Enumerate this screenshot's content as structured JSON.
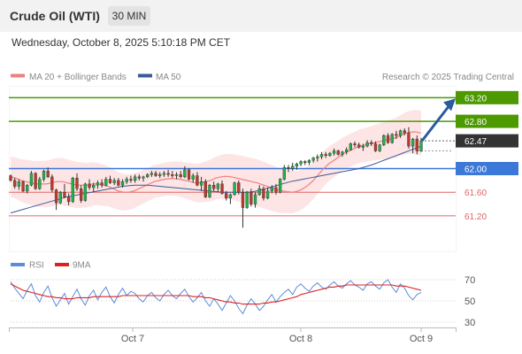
{
  "header": {
    "title": "Crude Oil (WTI)",
    "timeframe": "30 MIN"
  },
  "timestamp": "Wednesday, October 8, 2025 5:10:18 PM CET",
  "legend": {
    "ma20": "MA 20 + Bollinger Bands",
    "ma50": "MA 50",
    "credit": "Research © 2025 Trading Central",
    "rsi": "RSI",
    "ma9": "9MA"
  },
  "colors": {
    "candle_up": "#22b14c",
    "candle_down": "#c0392b",
    "ma20": "#f08080",
    "band": "#fde0e0",
    "ma50": "#3d5a99",
    "resistance": "#4c9a00",
    "support_blue": "#3c78d8",
    "support_red": "#e06666",
    "current": "#333333",
    "arrow": "#2a5b9c",
    "rsi": "#5b8dd9",
    "rsi_ma": "#e02020"
  },
  "chart_data": [
    {
      "type": "candlestick",
      "instrument": "Crude Oil (WTI)",
      "interval": "30 MIN",
      "xlabel": "",
      "ylabel": "",
      "x_ticks": [
        "Oct 7",
        "Oct 8",
        "Oct 9"
      ],
      "ylim": [
        60.6,
        63.4
      ],
      "current_price": 62.47,
      "levels": [
        {
          "value": 63.2,
          "label": "63.20",
          "kind": "resistance"
        },
        {
          "value": 62.8,
          "label": "62.80",
          "kind": "resistance"
        },
        {
          "value": 62.47,
          "label": "62.47",
          "kind": "current"
        },
        {
          "value": 62.0,
          "label": "62.00",
          "kind": "pivot"
        },
        {
          "value": 61.6,
          "label": "61.60",
          "kind": "support"
        },
        {
          "value": 61.2,
          "label": "61.20",
          "kind": "support"
        }
      ],
      "forecast_target": 63.2,
      "series": [
        {
          "name": "MA 20",
          "values": [
            61.86,
            61.84,
            61.8,
            61.78,
            61.76,
            61.74,
            61.74,
            61.74,
            61.76,
            61.78,
            61.78,
            61.76,
            61.74,
            61.72,
            61.72,
            61.72,
            61.74,
            61.74,
            61.72,
            61.7,
            61.66,
            61.62,
            61.6,
            61.6,
            61.62,
            61.66,
            61.7,
            61.74,
            61.78,
            61.8,
            61.82,
            61.83,
            61.83,
            61.82,
            61.8,
            61.78,
            61.76,
            61.76,
            61.78,
            61.8,
            61.84,
            61.86,
            61.87,
            61.86,
            61.84,
            61.82,
            61.8,
            61.78,
            61.76,
            61.73,
            61.7,
            61.67,
            61.64,
            61.62,
            61.61,
            61.6,
            61.62,
            61.66,
            61.72,
            61.8,
            61.9,
            62.0,
            62.08,
            62.14,
            62.2,
            62.26,
            62.3,
            62.34,
            62.38,
            62.4,
            62.42,
            62.44,
            62.46,
            62.48,
            62.5,
            62.52,
            62.56,
            62.6,
            62.62,
            62.62,
            62.6
          ]
        },
        {
          "name": "MA 50",
          "values": [
            61.25,
            61.28,
            61.31,
            61.34,
            61.37,
            61.4,
            61.43,
            61.46,
            61.49,
            61.52,
            61.54,
            61.56,
            61.58,
            61.6,
            61.62,
            61.64,
            61.66,
            61.68,
            61.7,
            61.71,
            61.72,
            61.72,
            61.72,
            61.71,
            61.7,
            61.69,
            61.68,
            61.67,
            61.66,
            61.65,
            61.64,
            61.63,
            61.62,
            61.61,
            61.6,
            61.6,
            61.6,
            61.6,
            61.6,
            61.61,
            61.63,
            61.66,
            61.69,
            61.72,
            61.75,
            61.78,
            61.8,
            61.82,
            61.84,
            61.86,
            61.88,
            61.9,
            61.92,
            61.94,
            61.96,
            61.98,
            62.0,
            62.03,
            62.06,
            62.1,
            62.14,
            62.18,
            62.22,
            62.26,
            62.3,
            62.34,
            62.38
          ]
        }
      ],
      "candles": [
        [
          61.88,
          61.9,
          61.78,
          61.8
        ],
        [
          61.8,
          61.84,
          61.66,
          61.7
        ],
        [
          61.7,
          61.82,
          61.64,
          61.78
        ],
        [
          61.78,
          61.8,
          61.6,
          61.62
        ],
        [
          61.62,
          61.74,
          61.58,
          61.72
        ],
        [
          61.72,
          61.96,
          61.7,
          61.92
        ],
        [
          61.92,
          61.94,
          61.64,
          61.66
        ],
        [
          61.66,
          61.86,
          61.64,
          61.82
        ],
        [
          61.82,
          61.98,
          61.78,
          61.96
        ],
        [
          61.96,
          62.02,
          61.84,
          61.86
        ],
        [
          61.86,
          61.9,
          61.6,
          61.64
        ],
        [
          61.64,
          61.66,
          61.3,
          61.42
        ],
        [
          61.42,
          61.62,
          61.4,
          61.6
        ],
        [
          61.6,
          61.74,
          61.5,
          61.52
        ],
        [
          61.52,
          61.58,
          61.38,
          61.44
        ],
        [
          61.44,
          61.86,
          61.42,
          61.84
        ],
        [
          61.84,
          61.92,
          61.62,
          61.66
        ],
        [
          61.66,
          61.72,
          61.42,
          61.46
        ],
        [
          61.46,
          61.76,
          61.44,
          61.74
        ],
        [
          61.74,
          61.82,
          61.64,
          61.68
        ],
        [
          61.68,
          61.76,
          61.6,
          61.72
        ],
        [
          61.72,
          61.8,
          61.66,
          61.76
        ],
        [
          61.76,
          61.82,
          61.68,
          61.72
        ],
        [
          61.72,
          61.86,
          61.7,
          61.82
        ],
        [
          61.82,
          61.88,
          61.74,
          61.76
        ],
        [
          61.76,
          61.84,
          61.72,
          61.8
        ],
        [
          61.8,
          61.84,
          61.7,
          61.72
        ],
        [
          61.72,
          61.82,
          61.68,
          61.78
        ],
        [
          61.78,
          61.86,
          61.74,
          61.82
        ],
        [
          61.82,
          61.88,
          61.76,
          61.8
        ],
        [
          61.8,
          61.9,
          61.76,
          61.86
        ],
        [
          61.86,
          61.9,
          61.8,
          61.84
        ],
        [
          61.84,
          61.88,
          61.78,
          61.86
        ],
        [
          61.86,
          61.92,
          61.84,
          61.9
        ],
        [
          61.9,
          61.96,
          61.86,
          61.92
        ],
        [
          61.92,
          61.96,
          61.86,
          61.88
        ],
        [
          61.88,
          61.94,
          61.84,
          61.9
        ],
        [
          61.9,
          61.96,
          61.86,
          61.92
        ],
        [
          61.92,
          61.98,
          61.86,
          61.9
        ],
        [
          61.9,
          61.96,
          61.84,
          61.88
        ],
        [
          61.88,
          61.94,
          61.82,
          61.9
        ],
        [
          61.9,
          61.96,
          61.84,
          61.86
        ],
        [
          61.86,
          62.04,
          61.84,
          61.98
        ],
        [
          61.98,
          62.0,
          61.8,
          61.82
        ],
        [
          61.82,
          61.92,
          61.76,
          61.88
        ],
        [
          61.88,
          61.94,
          61.7,
          61.72
        ],
        [
          61.72,
          61.86,
          61.62,
          61.78
        ],
        [
          61.78,
          61.82,
          61.5,
          61.52
        ],
        [
          61.52,
          61.74,
          61.5,
          61.72
        ],
        [
          61.72,
          61.78,
          61.62,
          61.66
        ],
        [
          61.66,
          61.76,
          61.6,
          61.74
        ],
        [
          61.74,
          61.8,
          61.56,
          61.58
        ],
        [
          61.58,
          61.62,
          61.46,
          61.5
        ],
        [
          61.5,
          61.58,
          61.4,
          61.56
        ],
        [
          61.56,
          61.78,
          61.54,
          61.76
        ],
        [
          61.76,
          61.8,
          61.56,
          61.6
        ],
        [
          61.6,
          61.66,
          61.0,
          61.34
        ],
        [
          61.34,
          61.62,
          61.32,
          61.6
        ],
        [
          61.6,
          61.66,
          61.36,
          61.4
        ],
        [
          61.4,
          61.6,
          61.34,
          61.56
        ],
        [
          61.56,
          61.72,
          61.54,
          61.66
        ],
        [
          61.66,
          61.7,
          61.46,
          61.5
        ],
        [
          61.5,
          61.68,
          61.48,
          61.62
        ],
        [
          61.62,
          61.72,
          61.58,
          61.68
        ],
        [
          61.68,
          61.74,
          61.56,
          61.6
        ],
        [
          61.6,
          61.84,
          61.58,
          61.82
        ],
        [
          61.82,
          62.06,
          61.8,
          62.02
        ],
        [
          62.02,
          62.06,
          61.94,
          62.0
        ],
        [
          62.0,
          62.1,
          61.96,
          62.04
        ],
        [
          62.04,
          62.1,
          61.98,
          62.08
        ],
        [
          62.08,
          62.14,
          62.04,
          62.12
        ],
        [
          62.12,
          62.14,
          62.06,
          62.1
        ],
        [
          62.1,
          62.16,
          62.06,
          62.14
        ],
        [
          62.14,
          62.2,
          62.1,
          62.18
        ],
        [
          62.18,
          62.24,
          62.12,
          62.2
        ],
        [
          62.2,
          62.28,
          62.16,
          62.24
        ],
        [
          62.24,
          62.28,
          62.18,
          62.22
        ],
        [
          62.22,
          62.28,
          62.2,
          62.26
        ],
        [
          62.26,
          62.34,
          62.22,
          62.3
        ],
        [
          62.3,
          62.32,
          62.22,
          62.24
        ],
        [
          62.24,
          62.3,
          62.2,
          62.28
        ],
        [
          62.28,
          62.36,
          62.24,
          62.32
        ],
        [
          62.32,
          62.44,
          62.3,
          62.42
        ],
        [
          62.42,
          62.46,
          62.36,
          62.4
        ],
        [
          62.4,
          62.44,
          62.34,
          62.36
        ],
        [
          62.36,
          62.42,
          62.3,
          62.38
        ],
        [
          62.38,
          62.48,
          62.36,
          62.44
        ],
        [
          62.44,
          62.48,
          62.38,
          62.42
        ],
        [
          62.42,
          62.46,
          62.28,
          62.3
        ],
        [
          62.3,
          62.42,
          62.28,
          62.4
        ],
        [
          62.4,
          62.58,
          62.38,
          62.56
        ],
        [
          62.56,
          62.6,
          62.42,
          62.44
        ],
        [
          62.44,
          62.6,
          62.42,
          62.58
        ],
        [
          62.58,
          62.64,
          62.5,
          62.56
        ],
        [
          62.56,
          62.66,
          62.52,
          62.64
        ],
        [
          62.64,
          62.68,
          62.56,
          62.6
        ],
        [
          62.6,
          62.7,
          62.34,
          62.38
        ],
        [
          62.38,
          62.52,
          62.26,
          62.5
        ],
        [
          62.5,
          62.56,
          62.24,
          62.3
        ],
        [
          62.3,
          62.52,
          62.28,
          62.47
        ]
      ]
    },
    {
      "type": "line",
      "title": "RSI",
      "x_ticks": [
        "Oct 7",
        "Oct 8",
        "Oct 9"
      ],
      "y_ticks": [
        70,
        50,
        30
      ],
      "ylim": [
        25,
        75
      ],
      "series": [
        {
          "name": "RSI",
          "values": [
            68,
            62,
            57,
            52,
            60,
            66,
            55,
            49,
            58,
            64,
            53,
            45,
            51,
            57,
            47,
            54,
            61,
            52,
            46,
            55,
            60,
            51,
            58,
            63,
            54,
            48,
            56,
            62,
            55,
            59,
            57,
            52,
            49,
            55,
            58,
            53,
            50,
            56,
            60,
            55,
            52,
            57,
            61,
            54,
            49,
            53,
            58,
            50,
            45,
            52,
            47,
            41,
            48,
            55,
            50,
            43,
            38,
            46,
            52,
            47,
            41,
            45,
            51,
            56,
            49,
            54,
            58,
            61,
            56,
            63,
            66,
            62,
            59,
            64,
            67,
            63,
            61,
            65,
            68,
            64,
            62,
            66,
            69,
            65,
            63,
            60,
            66,
            68,
            64,
            61,
            67,
            70,
            63,
            58,
            66,
            62,
            55,
            51,
            56,
            58
          ]
        },
        {
          "name": "9MA",
          "values": [
            66,
            64,
            62,
            60,
            59,
            58,
            57,
            56,
            55,
            54,
            54,
            53,
            53,
            52,
            52,
            52,
            53,
            53,
            53,
            53,
            54,
            54,
            54,
            54,
            54,
            54,
            54,
            55,
            55,
            55,
            55,
            55,
            55,
            55,
            55,
            55,
            55,
            55,
            55,
            55,
            55,
            55,
            55,
            55,
            54,
            54,
            54,
            53,
            53,
            52,
            51,
            50,
            49,
            49,
            48,
            48,
            47,
            47,
            47,
            47,
            47,
            48,
            48,
            49,
            49,
            50,
            51,
            52,
            53,
            54,
            56,
            57,
            58,
            59,
            60,
            61,
            62,
            63,
            63,
            64,
            64,
            65,
            65,
            65,
            65,
            65,
            65,
            65,
            65,
            65,
            65,
            65,
            65,
            64,
            64,
            64,
            63,
            62,
            61,
            60
          ]
        }
      ]
    }
  ]
}
